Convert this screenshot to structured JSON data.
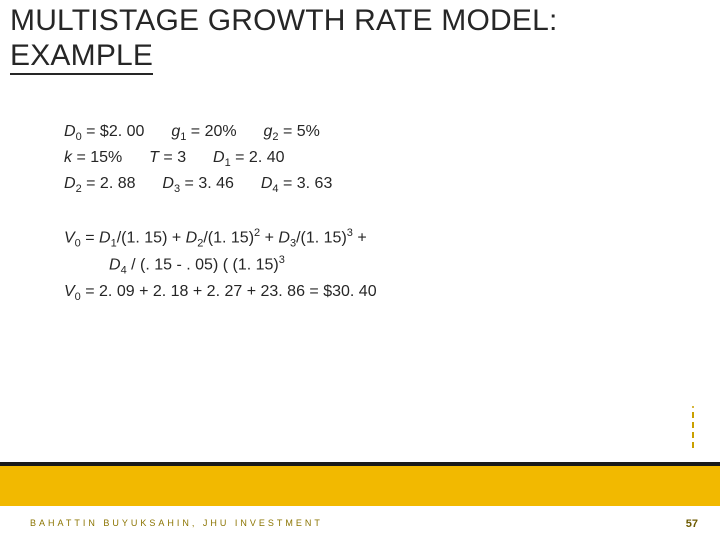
{
  "title_line1": "MULTISTAGE GROWTH RATE MODEL:",
  "title_line2": "EXAMPLE",
  "p1a_D0": "D",
  "p1a_D0val": " = $2. 00",
  "p1a_g1": "g",
  "p1a_g1val": " = 20%",
  "p1a_g2": "g",
  "p1a_g2val": " = 5%",
  "p1b_k": "k",
  "p1b_kval": " = 15%",
  "p1b_T": "T",
  "p1b_Tval": " = 3",
  "p1b_D1": "D",
  "p1b_D1val": " = 2. 40",
  "p1c_D2": "D",
  "p1c_D2val": " = 2. 88",
  "p1c_D3": "D",
  "p1c_D3val": " = 3. 46",
  "p1c_D4": "D",
  "p1c_D4val": " = 3. 63",
  "p2a_pre": "V",
  "p2a_mid1": " = ",
  "p2a_D1": "D",
  "p2a_D1post": "/(1. 15) + ",
  "p2a_D2": "D",
  "p2a_D2post": "/(1. 15)",
  "p2a_plus1": " + ",
  "p2a_D3": "D",
  "p2a_D3post": "/(1. 15)",
  "p2a_tail": " +",
  "p2b_pre": "D",
  "p2b_mid": " / (. 15 - . 05) ( (1. 15)",
  "p2c": "V",
  "p2c_val": " = 2. 09 + 2. 18 + 2. 27 + 23. 86 = $30. 40",
  "footer_author": "BAHATTIN BUYUKSAHIN, JHU INVESTMENT",
  "footer_page": "57",
  "colors": {
    "band": "#f2b900",
    "band_black": "#1a1a1a",
    "text": "#262626",
    "footer_text": "#8b7400"
  }
}
